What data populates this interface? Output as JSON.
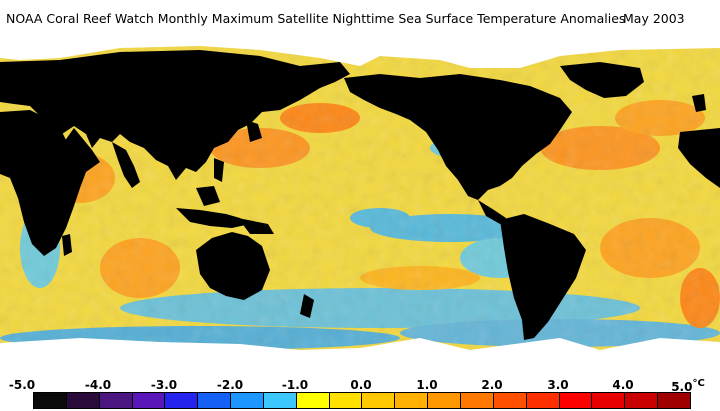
{
  "title": {
    "main": "NOAA Coral Reef Watch Monthly Maximum Satellite Nighttime Sea Surface Temperature Anomalies",
    "date": "May 2003"
  },
  "legend": {
    "unit": "°C",
    "labels": [
      "-5.0",
      "-4.0",
      "-3.0",
      "-2.0",
      "-1.0",
      "0.0",
      "1.0",
      "2.0",
      "3.0",
      "4.0",
      "5.0"
    ],
    "swatches": [
      "#0a0a0a",
      "#2a0a3a",
      "#4b1680",
      "#5a16b8",
      "#2424ee",
      "#1560f5",
      "#1e96ff",
      "#3cc8ff",
      "#ffff00",
      "#ffe000",
      "#ffc800",
      "#ffb000",
      "#ff9800",
      "#ff7800",
      "#ff5000",
      "#ff3000",
      "#ff0000",
      "#e80000",
      "#c80000",
      "#a00000"
    ],
    "colors": {
      "land": "#000000",
      "ice": "#ffffff",
      "ocean_base": "#f3d83e",
      "cool": "#2aa0f0",
      "warm": "#ff9a1a"
    }
  }
}
